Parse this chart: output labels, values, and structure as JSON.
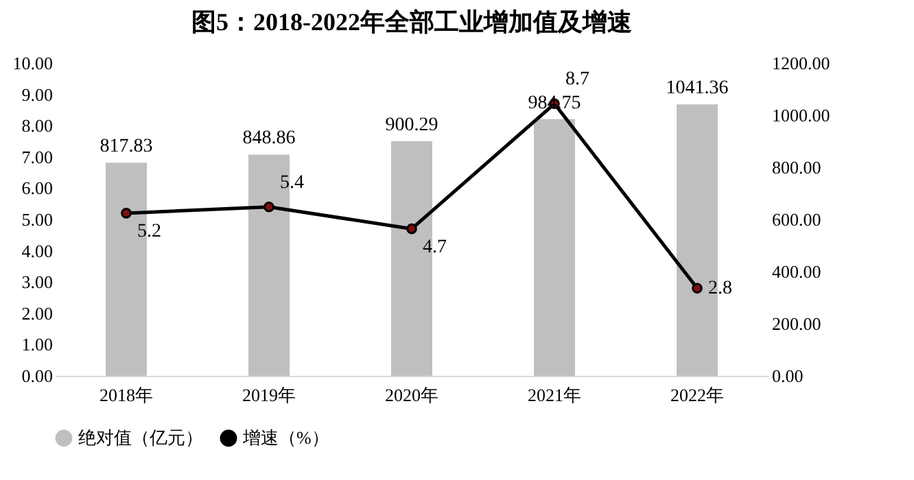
{
  "chart_data": {
    "type": "bar",
    "title": "图5：2018-2022年全部工业增加值及增速",
    "categories": [
      "2018年",
      "2019年",
      "2020年",
      "2021年",
      "2022年"
    ],
    "series": [
      {
        "name": "绝对值（亿元）",
        "axis": "y2",
        "color": "#bfbfbf",
        "values": [
          817.83,
          848.86,
          900.29,
          984.75,
          1041.36
        ]
      },
      {
        "name": "增速（%）",
        "type": "line",
        "axis": "y",
        "color": "#000000",
        "values": [
          5.2,
          5.4,
          4.7,
          8.7,
          2.8
        ]
      }
    ],
    "ylim": [
      0,
      10
    ],
    "yticks": [
      {
        "value": 0,
        "label": "0.00"
      },
      {
        "value": 1,
        "label": "1.00"
      },
      {
        "value": 2,
        "label": "2.00"
      },
      {
        "value": 3,
        "label": "3.00"
      },
      {
        "value": 4,
        "label": "4.00"
      },
      {
        "value": 5,
        "label": "5.00"
      },
      {
        "value": 6,
        "label": "6.00"
      },
      {
        "value": 7,
        "label": "7.00"
      },
      {
        "value": 8,
        "label": "8.00"
      },
      {
        "value": 9,
        "label": "9.00"
      },
      {
        "value": 10,
        "label": "10.00"
      }
    ],
    "y2lim": [
      0,
      1200
    ],
    "y2ticks": [
      {
        "value": 0,
        "label": "0.00"
      },
      {
        "value": 200,
        "label": "200.00"
      },
      {
        "value": 400,
        "label": "400.00"
      },
      {
        "value": 600,
        "label": "600.00"
      },
      {
        "value": 800,
        "label": "800.00"
      },
      {
        "value": 1000,
        "label": "1000.00"
      },
      {
        "value": 1200,
        "label": "1200.00"
      }
    ],
    "data_labels": true,
    "marker": "circle",
    "grid": false,
    "legend": "bottom"
  }
}
